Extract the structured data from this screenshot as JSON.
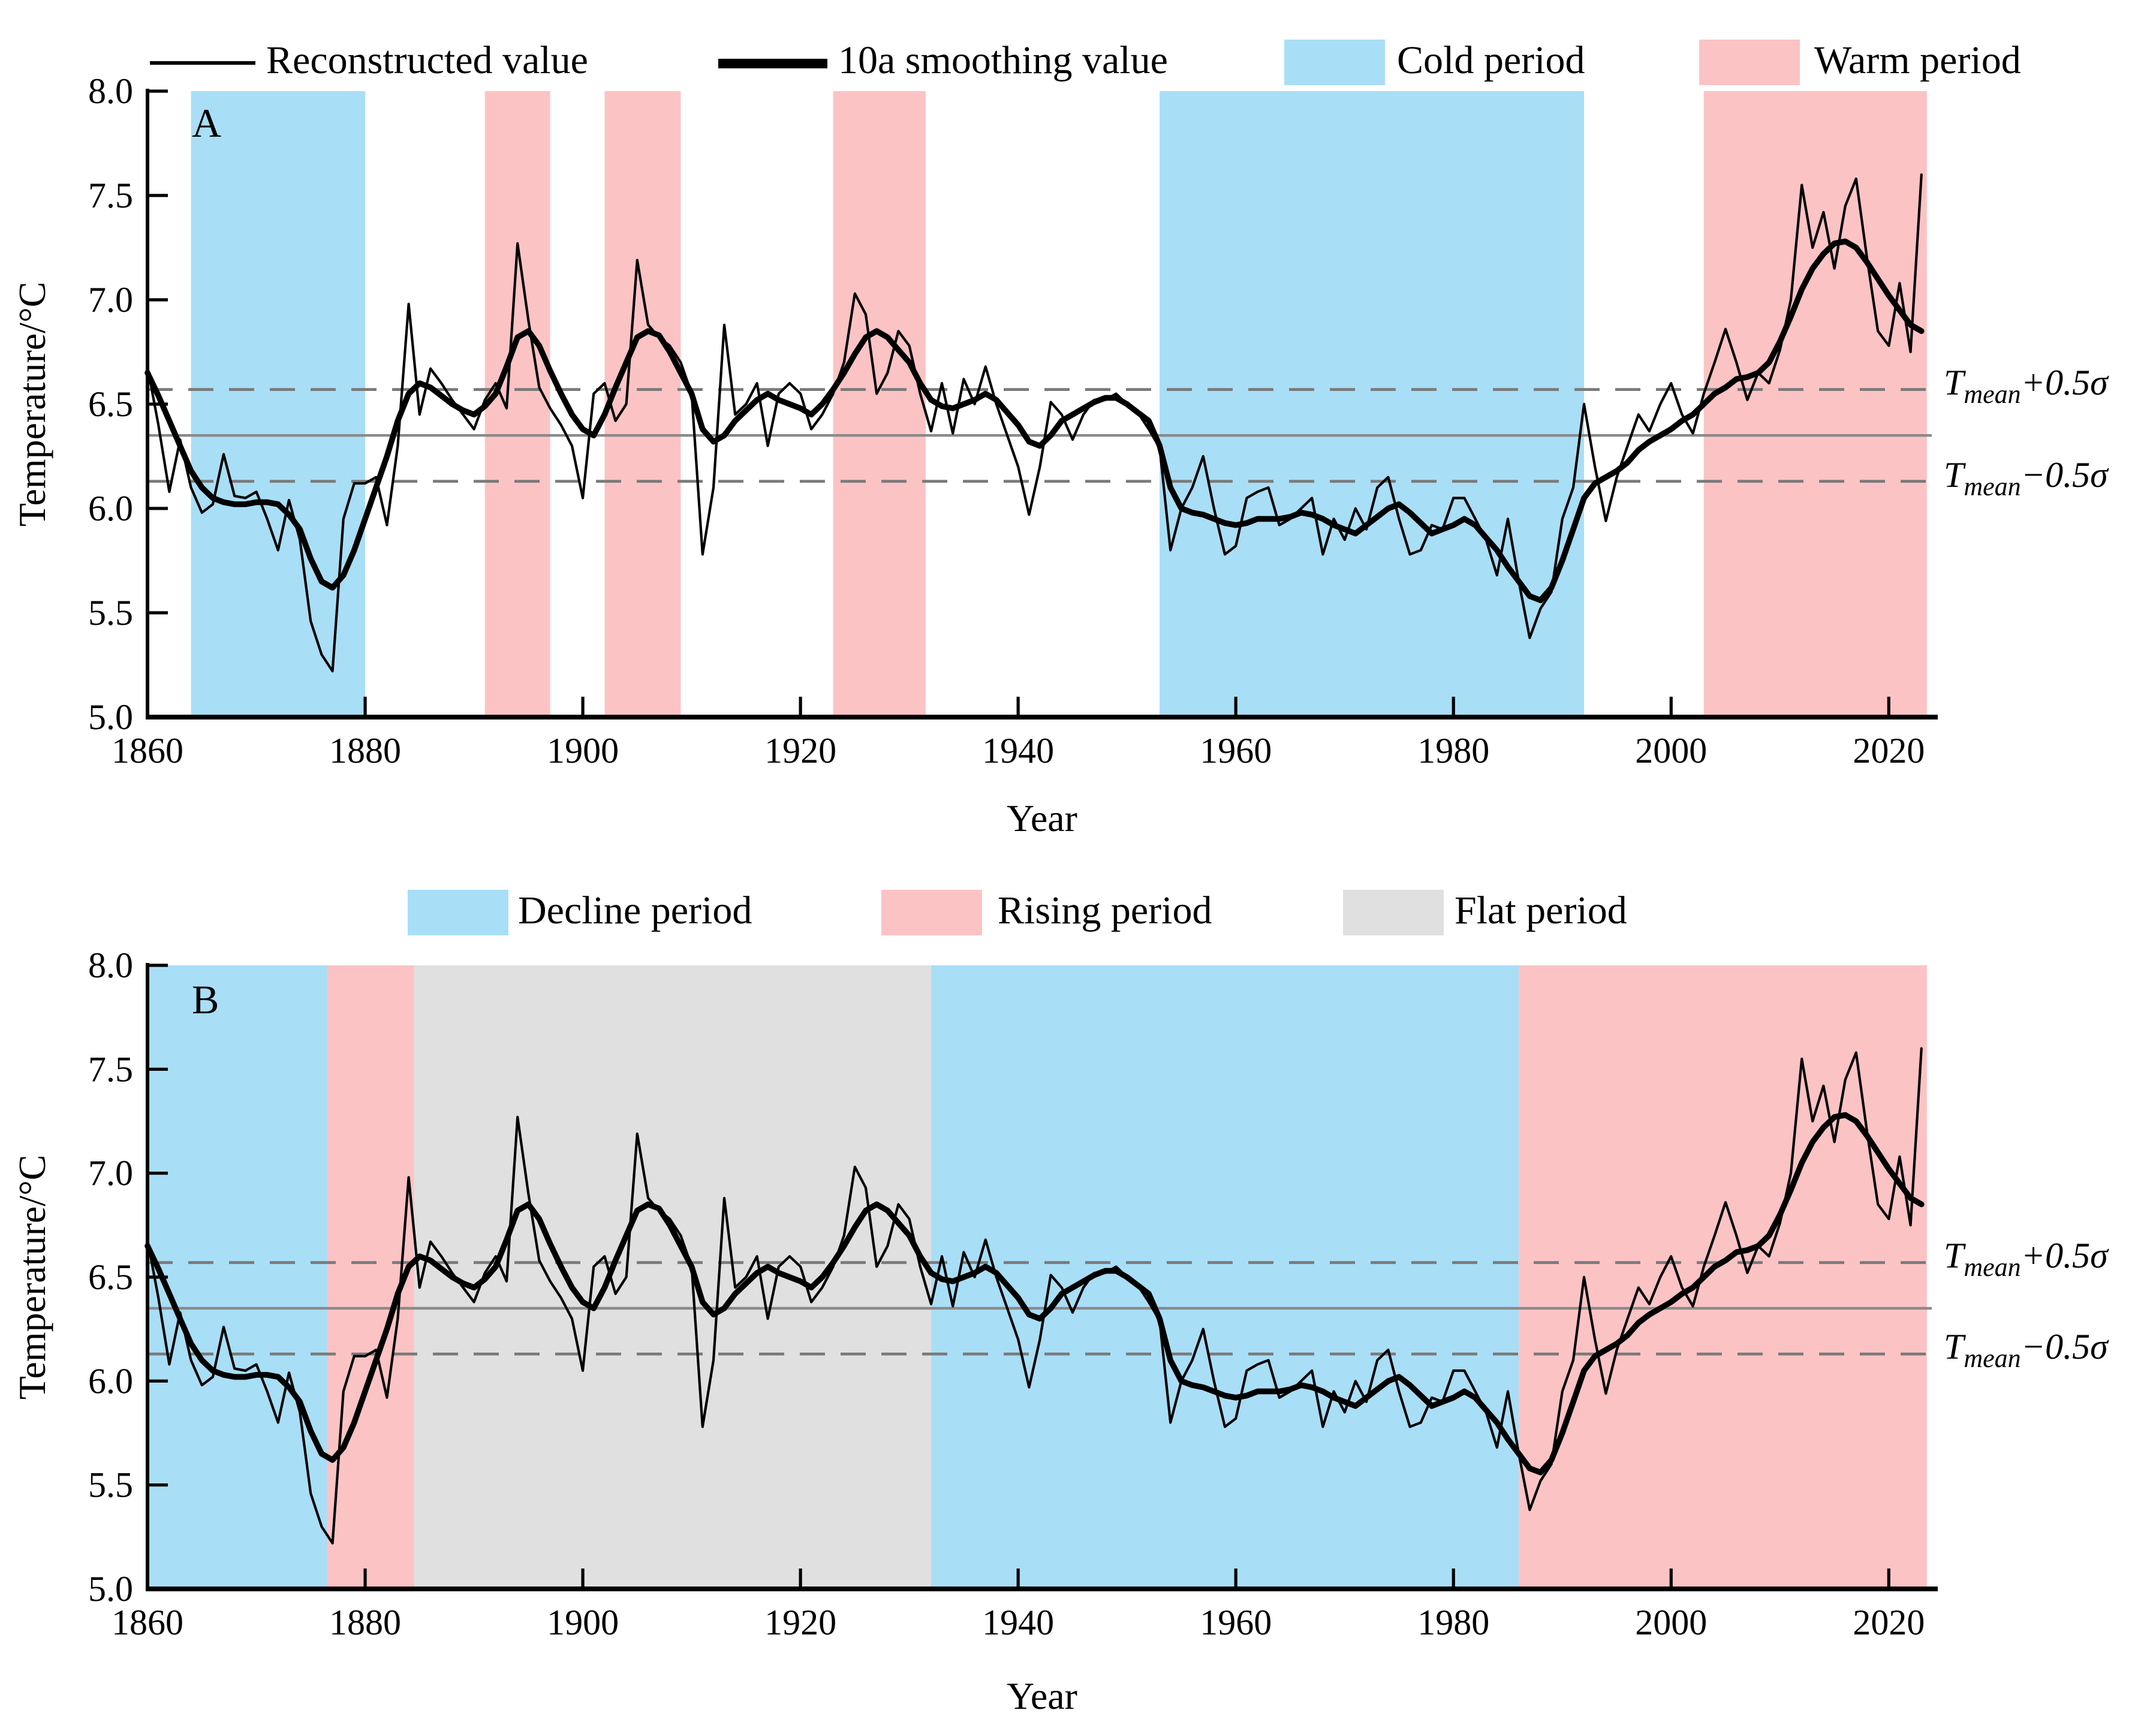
{
  "legend_top": {
    "reconstructed": "Reconstructed value",
    "smoothing": "10a smoothing value",
    "cold": "Cold period",
    "warm": "Warm period"
  },
  "legend_bottom": {
    "decline": "Decline period",
    "rising": "Rising period",
    "flat": "Flat period"
  },
  "colors": {
    "cold": "#a9def7",
    "warm": "#fcc3c5",
    "decline": "#a9def7",
    "rising": "#fcc3c5",
    "flat": "#e0e0e0",
    "dashed_line": "#7a7a7a",
    "mean_line": "#8a8a8a",
    "series": "#000000"
  },
  "axes": {
    "xlabel": "Year",
    "ylabel": "Temperature/°C"
  },
  "annotations": {
    "upper": {
      "t": "T",
      "sub": "mean",
      "rest": "+0.5σ"
    },
    "lower": {
      "t": "T",
      "sub": "mean",
      "rest": "−0.5σ"
    }
  },
  "chart_data": {
    "type": "line",
    "xlabel": "Year",
    "ylabel": "Temperature/°C",
    "xlim": [
      1860,
      2024.5
    ],
    "ylim": [
      5.0,
      8.0
    ],
    "xticks": [
      1860,
      1880,
      1900,
      1920,
      1940,
      1960,
      1980,
      2000,
      2020
    ],
    "yticks": [
      5.0,
      5.5,
      6.0,
      6.5,
      7.0,
      7.5,
      8.0
    ],
    "grid": false,
    "reference_lines": {
      "t_mean": 6.35,
      "t_mean_plus_half_sigma": 6.57,
      "t_mean_minus_half_sigma": 6.13
    },
    "year_start": 1860,
    "year_end": 2023,
    "series": [
      {
        "name": "Reconstructed value",
        "style": "thin",
        "values": [
          6.68,
          6.4,
          6.08,
          6.33,
          6.1,
          5.98,
          6.02,
          6.26,
          6.06,
          6.05,
          6.08,
          5.95,
          5.8,
          6.04,
          5.85,
          5.46,
          5.3,
          5.22,
          5.95,
          6.12,
          6.12,
          6.15,
          5.92,
          6.3,
          6.98,
          6.45,
          6.67,
          6.6,
          6.52,
          6.45,
          6.38,
          6.52,
          6.6,
          6.48,
          7.27,
          6.9,
          6.58,
          6.48,
          6.4,
          6.3,
          6.05,
          6.55,
          6.6,
          6.42,
          6.5,
          7.19,
          6.88,
          6.82,
          6.78,
          6.7,
          6.55,
          5.78,
          6.1,
          6.88,
          6.45,
          6.5,
          6.6,
          6.3,
          6.55,
          6.6,
          6.55,
          6.38,
          6.45,
          6.55,
          6.7,
          7.03,
          6.93,
          6.55,
          6.65,
          6.85,
          6.78,
          6.55,
          6.37,
          6.6,
          6.36,
          6.62,
          6.5,
          6.68,
          6.5,
          6.35,
          6.2,
          5.97,
          6.2,
          6.51,
          6.45,
          6.33,
          6.45,
          6.52,
          6.52,
          6.55,
          6.5,
          6.46,
          6.38,
          6.29,
          5.8,
          6.0,
          6.1,
          6.25,
          6.0,
          5.78,
          5.82,
          6.05,
          6.08,
          6.1,
          5.92,
          5.95,
          6.0,
          6.05,
          5.78,
          5.95,
          5.85,
          6.0,
          5.9,
          6.1,
          6.15,
          5.95,
          5.78,
          5.8,
          5.92,
          5.9,
          6.05,
          6.05,
          5.95,
          5.85,
          5.68,
          5.95,
          5.65,
          5.38,
          5.52,
          5.6,
          5.95,
          6.1,
          6.5,
          6.2,
          5.94,
          6.15,
          6.3,
          6.45,
          6.37,
          6.5,
          6.6,
          6.45,
          6.36,
          6.55,
          6.7,
          6.86,
          6.7,
          6.52,
          6.65,
          6.6,
          6.76,
          7.0,
          7.55,
          7.25,
          7.42,
          7.15,
          7.45,
          7.58,
          7.2,
          6.85,
          6.78,
          7.08,
          6.75,
          7.6
        ]
      },
      {
        "name": "10a smoothing value",
        "style": "thick",
        "values": [
          6.65,
          6.54,
          6.42,
          6.3,
          6.18,
          6.1,
          6.05,
          6.03,
          6.02,
          6.02,
          6.03,
          6.03,
          6.02,
          5.97,
          5.9,
          5.76,
          5.65,
          5.62,
          5.68,
          5.8,
          5.95,
          6.1,
          6.25,
          6.42,
          6.55,
          6.6,
          6.58,
          6.54,
          6.5,
          6.47,
          6.45,
          6.49,
          6.55,
          6.68,
          6.82,
          6.85,
          6.78,
          6.66,
          6.55,
          6.45,
          6.38,
          6.35,
          6.45,
          6.58,
          6.7,
          6.82,
          6.85,
          6.83,
          6.75,
          6.65,
          6.55,
          6.38,
          6.32,
          6.35,
          6.42,
          6.47,
          6.52,
          6.55,
          6.52,
          6.5,
          6.48,
          6.45,
          6.5,
          6.57,
          6.65,
          6.74,
          6.82,
          6.85,
          6.82,
          6.76,
          6.7,
          6.6,
          6.52,
          6.49,
          6.48,
          6.5,
          6.52,
          6.55,
          6.52,
          6.46,
          6.4,
          6.32,
          6.3,
          6.35,
          6.42,
          6.45,
          6.48,
          6.51,
          6.53,
          6.53,
          6.5,
          6.46,
          6.42,
          6.3,
          6.1,
          6.0,
          5.98,
          5.97,
          5.95,
          5.93,
          5.92,
          5.93,
          5.95,
          5.95,
          5.95,
          5.96,
          5.98,
          5.97,
          5.95,
          5.92,
          5.9,
          5.88,
          5.92,
          5.96,
          6.0,
          6.02,
          5.98,
          5.93,
          5.88,
          5.9,
          5.92,
          5.95,
          5.92,
          5.86,
          5.8,
          5.72,
          5.65,
          5.58,
          5.56,
          5.62,
          5.75,
          5.9,
          6.05,
          6.12,
          6.15,
          6.18,
          6.22,
          6.28,
          6.32,
          6.35,
          6.38,
          6.42,
          6.45,
          6.5,
          6.55,
          6.58,
          6.62,
          6.63,
          6.65,
          6.7,
          6.8,
          6.92,
          7.05,
          7.15,
          7.22,
          7.27,
          7.28,
          7.25,
          7.18,
          7.1,
          7.02,
          6.95,
          6.88,
          6.85
        ]
      }
    ],
    "panel_a": {
      "label": "A",
      "cold_periods": [
        [
          1864,
          1880
        ],
        [
          1953,
          1992
        ]
      ],
      "warm_periods": [
        [
          1891,
          1897
        ],
        [
          1902,
          1909
        ],
        [
          1923,
          1931.5
        ],
        [
          2003,
          2023.5
        ]
      ]
    },
    "panel_b": {
      "label": "B",
      "decline_periods": [
        [
          1860,
          1876.5
        ],
        [
          1932,
          1986
        ]
      ],
      "rising_periods": [
        [
          1876.5,
          1884.5
        ],
        [
          1986,
          2023.5
        ]
      ],
      "flat_periods": [
        [
          1884.5,
          1932
        ]
      ]
    }
  }
}
